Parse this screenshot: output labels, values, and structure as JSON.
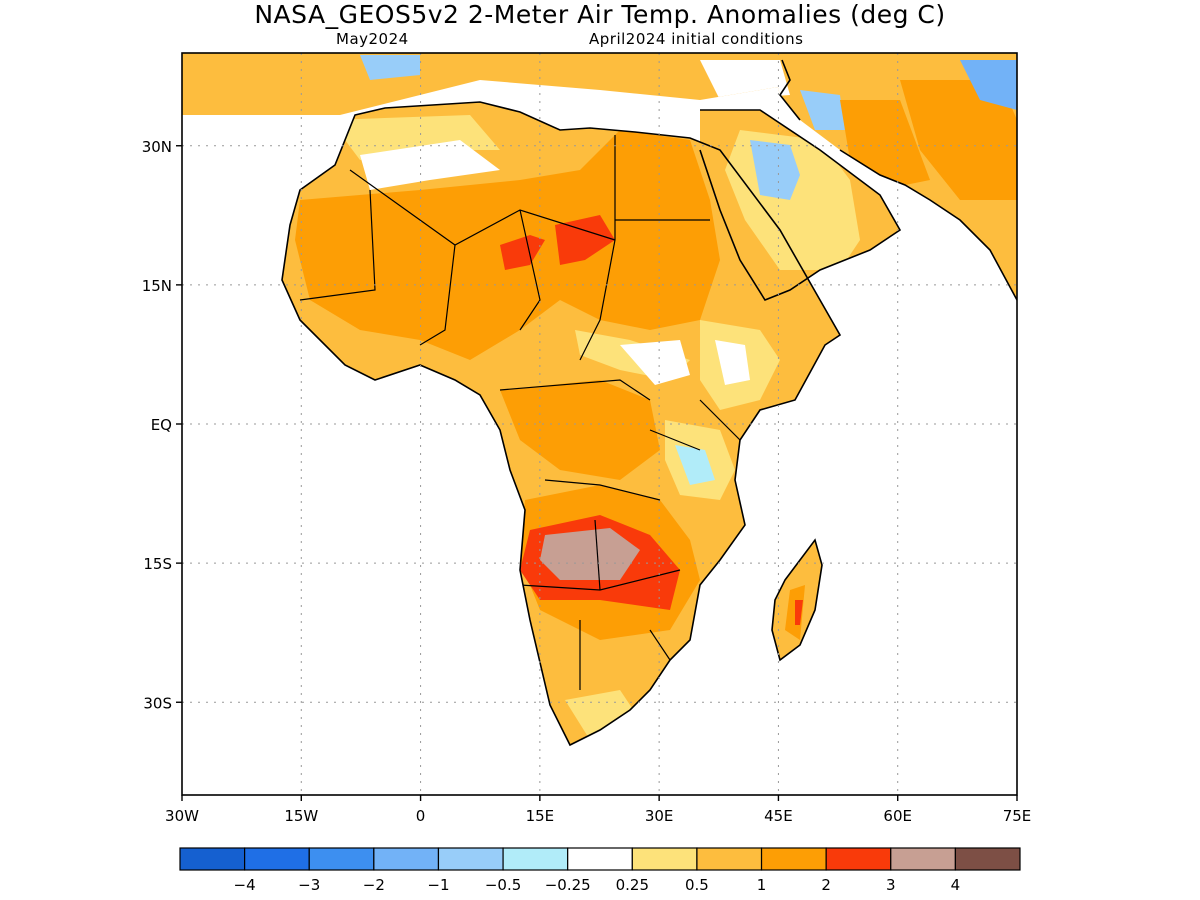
{
  "title": "NASA_GEOS5v2 2-Meter Air Temp. Anomalies (deg C)",
  "subtitle_left": "May2024",
  "subtitle_right": "April2024 initial conditions",
  "map": {
    "lat_labels": [
      "30N",
      "15N",
      "EQ",
      "15S",
      "30S"
    ],
    "lat_values": [
      30,
      15,
      0,
      -15,
      -30
    ],
    "lon_labels": [
      "30W",
      "15W",
      "0",
      "15E",
      "30E",
      "45E",
      "60E",
      "75E"
    ],
    "lon_values": [
      -30,
      -15,
      0,
      15,
      30,
      45,
      60,
      75
    ],
    "lon_range": [
      -30,
      75
    ],
    "lat_range": [
      -40,
      40
    ],
    "grid": "dotted"
  },
  "colorbar": {
    "colors": [
      "#1560d0",
      "#1f6fe6",
      "#3d8ff0",
      "#72b2f7",
      "#98cdf9",
      "#b1ecf9",
      "#ffffff",
      "#fde27a",
      "#fdbd3e",
      "#fd9e05",
      "#f93a0a",
      "#c79f93",
      "#7d4f45"
    ],
    "labels": [
      "-4",
      "-3",
      "-2",
      "-1",
      "-0.5",
      "-0.25",
      "0.25",
      "0.5",
      "1",
      "2",
      "3",
      "4"
    ]
  },
  "anomaly_fields": {
    "Sahara and Sahel": 1,
    "Central Sahara hot spots": 2,
    "Southern Africa (Angola, Zambia)": 2,
    "Angola-Zambia core": 3,
    "Arabian interior": -1,
    "East African highlands": -0.5,
    "Madagascar": 1
  }
}
